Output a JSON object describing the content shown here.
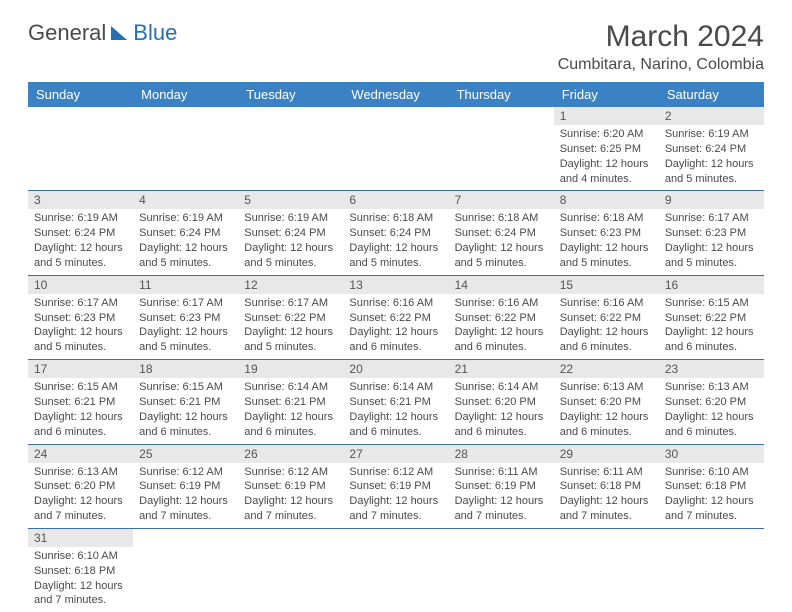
{
  "brand": {
    "part1": "General",
    "part2": "Blue"
  },
  "title": "March 2024",
  "location": "Cumbitara, Narino, Colombia",
  "colors": {
    "header_bg": "#3b82c4",
    "header_text": "#ffffff",
    "row_border": "#3b6fa8",
    "daynum_bg": "#e8e8e8",
    "text": "#4a4a4a",
    "brand_blue": "#2a6db5"
  },
  "weekdays": [
    "Sunday",
    "Monday",
    "Tuesday",
    "Wednesday",
    "Thursday",
    "Friday",
    "Saturday"
  ],
  "weeks": [
    [
      null,
      null,
      null,
      null,
      null,
      {
        "n": "1",
        "sr": "6:20 AM",
        "ss": "6:25 PM",
        "dl": "12 hours and 4 minutes."
      },
      {
        "n": "2",
        "sr": "6:19 AM",
        "ss": "6:24 PM",
        "dl": "12 hours and 5 minutes."
      }
    ],
    [
      {
        "n": "3",
        "sr": "6:19 AM",
        "ss": "6:24 PM",
        "dl": "12 hours and 5 minutes."
      },
      {
        "n": "4",
        "sr": "6:19 AM",
        "ss": "6:24 PM",
        "dl": "12 hours and 5 minutes."
      },
      {
        "n": "5",
        "sr": "6:19 AM",
        "ss": "6:24 PM",
        "dl": "12 hours and 5 minutes."
      },
      {
        "n": "6",
        "sr": "6:18 AM",
        "ss": "6:24 PM",
        "dl": "12 hours and 5 minutes."
      },
      {
        "n": "7",
        "sr": "6:18 AM",
        "ss": "6:24 PM",
        "dl": "12 hours and 5 minutes."
      },
      {
        "n": "8",
        "sr": "6:18 AM",
        "ss": "6:23 PM",
        "dl": "12 hours and 5 minutes."
      },
      {
        "n": "9",
        "sr": "6:17 AM",
        "ss": "6:23 PM",
        "dl": "12 hours and 5 minutes."
      }
    ],
    [
      {
        "n": "10",
        "sr": "6:17 AM",
        "ss": "6:23 PM",
        "dl": "12 hours and 5 minutes."
      },
      {
        "n": "11",
        "sr": "6:17 AM",
        "ss": "6:23 PM",
        "dl": "12 hours and 5 minutes."
      },
      {
        "n": "12",
        "sr": "6:17 AM",
        "ss": "6:22 PM",
        "dl": "12 hours and 5 minutes."
      },
      {
        "n": "13",
        "sr": "6:16 AM",
        "ss": "6:22 PM",
        "dl": "12 hours and 6 minutes."
      },
      {
        "n": "14",
        "sr": "6:16 AM",
        "ss": "6:22 PM",
        "dl": "12 hours and 6 minutes."
      },
      {
        "n": "15",
        "sr": "6:16 AM",
        "ss": "6:22 PM",
        "dl": "12 hours and 6 minutes."
      },
      {
        "n": "16",
        "sr": "6:15 AM",
        "ss": "6:22 PM",
        "dl": "12 hours and 6 minutes."
      }
    ],
    [
      {
        "n": "17",
        "sr": "6:15 AM",
        "ss": "6:21 PM",
        "dl": "12 hours and 6 minutes."
      },
      {
        "n": "18",
        "sr": "6:15 AM",
        "ss": "6:21 PM",
        "dl": "12 hours and 6 minutes."
      },
      {
        "n": "19",
        "sr": "6:14 AM",
        "ss": "6:21 PM",
        "dl": "12 hours and 6 minutes."
      },
      {
        "n": "20",
        "sr": "6:14 AM",
        "ss": "6:21 PM",
        "dl": "12 hours and 6 minutes."
      },
      {
        "n": "21",
        "sr": "6:14 AM",
        "ss": "6:20 PM",
        "dl": "12 hours and 6 minutes."
      },
      {
        "n": "22",
        "sr": "6:13 AM",
        "ss": "6:20 PM",
        "dl": "12 hours and 6 minutes."
      },
      {
        "n": "23",
        "sr": "6:13 AM",
        "ss": "6:20 PM",
        "dl": "12 hours and 6 minutes."
      }
    ],
    [
      {
        "n": "24",
        "sr": "6:13 AM",
        "ss": "6:20 PM",
        "dl": "12 hours and 7 minutes."
      },
      {
        "n": "25",
        "sr": "6:12 AM",
        "ss": "6:19 PM",
        "dl": "12 hours and 7 minutes."
      },
      {
        "n": "26",
        "sr": "6:12 AM",
        "ss": "6:19 PM",
        "dl": "12 hours and 7 minutes."
      },
      {
        "n": "27",
        "sr": "6:12 AM",
        "ss": "6:19 PM",
        "dl": "12 hours and 7 minutes."
      },
      {
        "n": "28",
        "sr": "6:11 AM",
        "ss": "6:19 PM",
        "dl": "12 hours and 7 minutes."
      },
      {
        "n": "29",
        "sr": "6:11 AM",
        "ss": "6:18 PM",
        "dl": "12 hours and 7 minutes."
      },
      {
        "n": "30",
        "sr": "6:10 AM",
        "ss": "6:18 PM",
        "dl": "12 hours and 7 minutes."
      }
    ],
    [
      {
        "n": "31",
        "sr": "6:10 AM",
        "ss": "6:18 PM",
        "dl": "12 hours and 7 minutes."
      },
      null,
      null,
      null,
      null,
      null,
      null
    ]
  ],
  "labels": {
    "sunrise": "Sunrise:",
    "sunset": "Sunset:",
    "daylight": "Daylight:"
  }
}
